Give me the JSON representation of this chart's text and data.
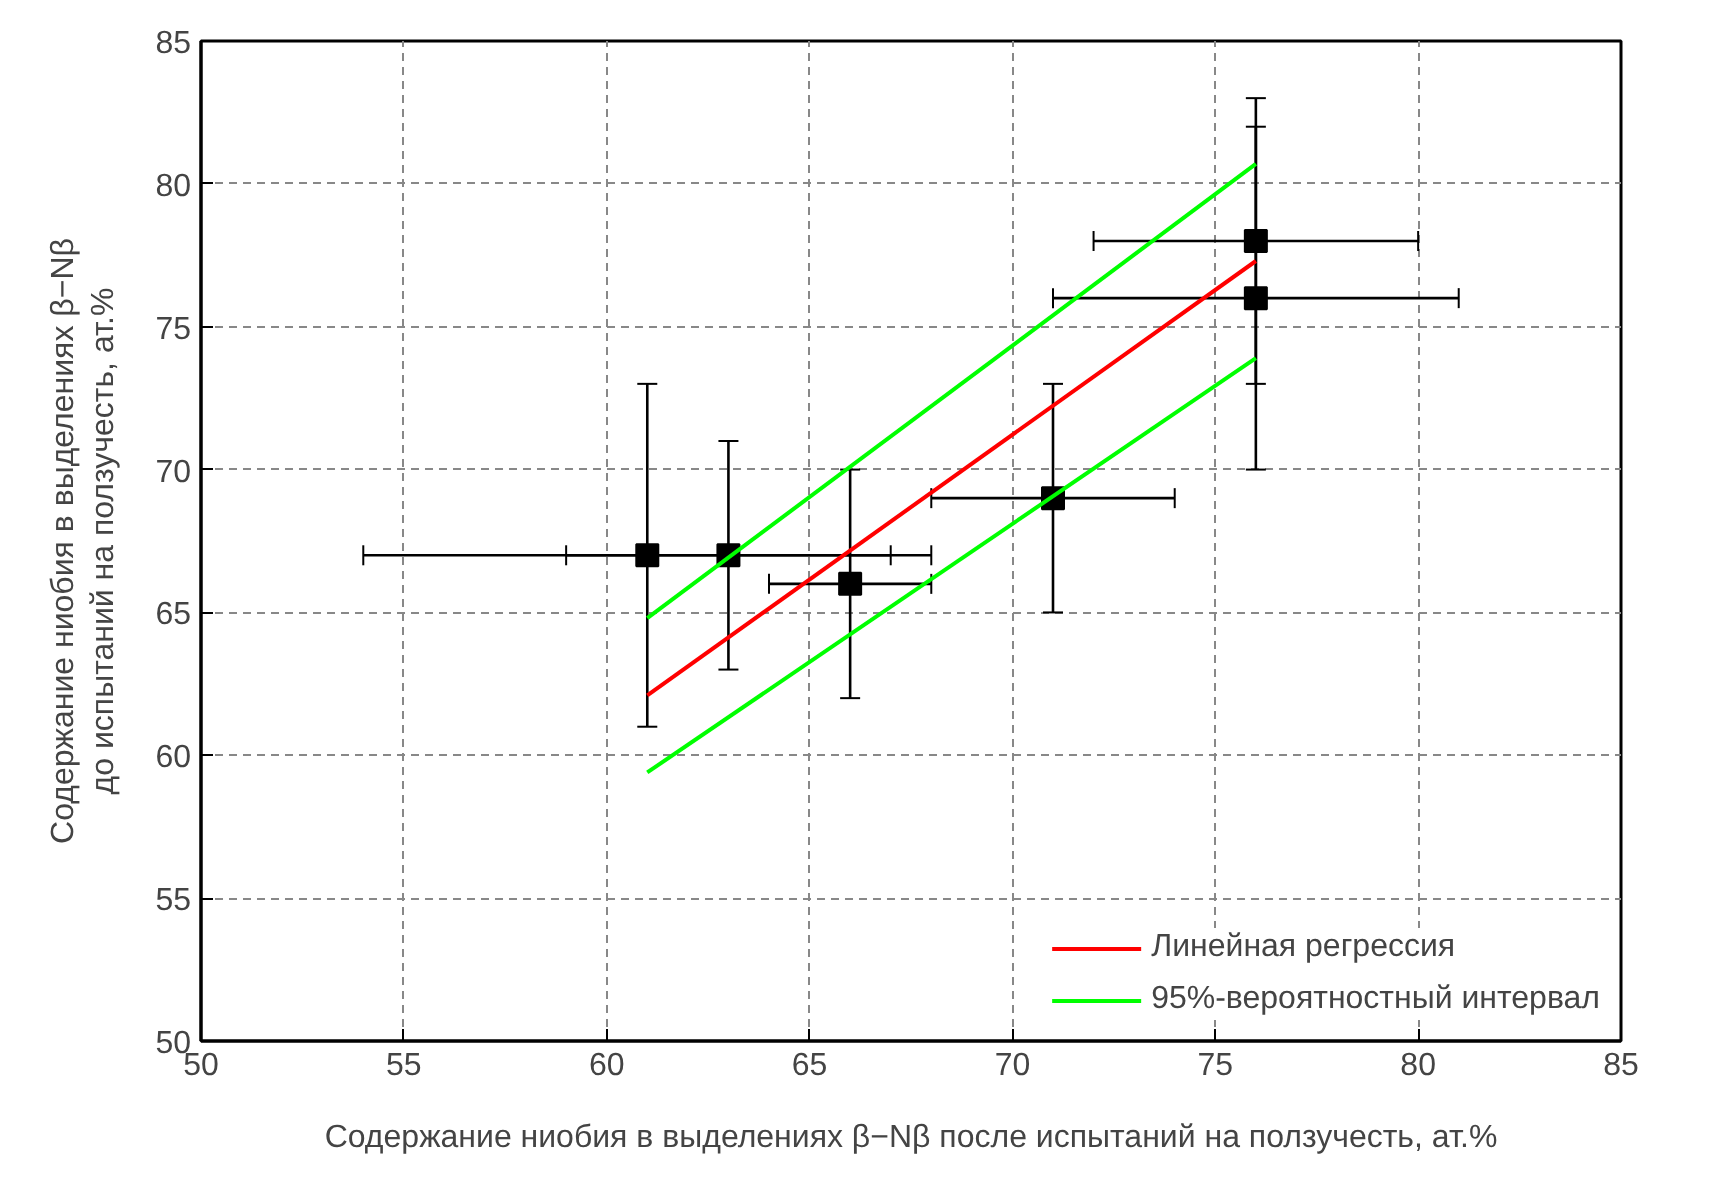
{
  "chart_data": {
    "type": "line",
    "xlabel": "Содержание ниобия в выделениях β−Nβ после испытаний на ползучесть, ат.%",
    "ylabel": "Содержание ниобия в выделениях β−Nβ\nдо испытаний на ползучесть, ат.%",
    "xlim": [
      50,
      85
    ],
    "xticks": [
      50,
      55,
      60,
      65,
      70,
      75,
      80,
      85
    ],
    "ylim": [
      50,
      85
    ],
    "yticks": [
      50,
      55,
      60,
      65,
      70,
      75,
      80,
      85
    ],
    "grid": true,
    "legend": "bottom right",
    "line_style": "solid",
    "series": [
      {
        "type": "scatter",
        "marker": "square",
        "color": "#000000",
        "x": [
          61,
          63,
          66,
          71,
          76,
          76
        ],
        "values": [
          67,
          67,
          66,
          69,
          76,
          78
        ],
        "errors": [
          6,
          4,
          4,
          4,
          6,
          5
        ],
        "xerrors": [
          7,
          4,
          2,
          3,
          5,
          4
        ]
      },
      {
        "name": "Линейная регрессия",
        "color": "#ff0000",
        "x": [
          61,
          76
        ],
        "values": [
          62.1,
          77.3
        ]
      },
      {
        "name": "95%-вероятностный интервал",
        "color": "#00ff00",
        "x": [
          61,
          76
        ],
        "values": [
          64.8,
          80.7
        ]
      },
      {
        "color": "#00ff00",
        "x": [
          61,
          76
        ],
        "values": [
          59.4,
          73.9
        ]
      }
    ]
  }
}
